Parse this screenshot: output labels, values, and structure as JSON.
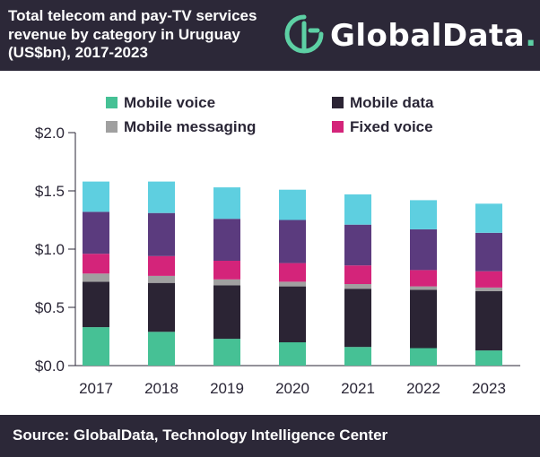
{
  "header": {
    "title_lines": [
      "Total telecom and pay-TV services",
      "revenue by category in Uruguay",
      "(US$bn), 2017-2023"
    ],
    "logo_text": "GlobalData",
    "logo_dot": "."
  },
  "footer": {
    "source": "Source: GlobalData, Technology Intelligence Center"
  },
  "colors": {
    "background_dark": "#2c2838",
    "logo_accent": "#5dd0a4"
  },
  "chart_data": {
    "type": "bar",
    "stacked": true,
    "title": "Total telecom and pay-TV services revenue by category in Uruguay (US$bn), 2017-2023",
    "categories": [
      "2017",
      "2018",
      "2019",
      "2020",
      "2021",
      "2022",
      "2023"
    ],
    "ylim": [
      0,
      2.0
    ],
    "yticks": [
      "$0.0",
      "$0.5",
      "$1.0",
      "$1.5",
      "$2.0"
    ],
    "ytick_values": [
      0,
      0.5,
      1.0,
      1.5,
      2.0
    ],
    "legend_position": "top",
    "series": [
      {
        "name": "Mobile voice",
        "color": "#46c195",
        "values": [
          0.33,
          0.29,
          0.23,
          0.2,
          0.16,
          0.15,
          0.13
        ]
      },
      {
        "name": "Mobile data",
        "color": "#2b2434",
        "values": [
          0.39,
          0.42,
          0.46,
          0.48,
          0.5,
          0.5,
          0.51
        ]
      },
      {
        "name": "Mobile messaging",
        "color": "#a0a0a0",
        "values": [
          0.07,
          0.06,
          0.05,
          0.04,
          0.04,
          0.03,
          0.03
        ]
      },
      {
        "name": "Fixed voice",
        "color": "#d4247a",
        "values": [
          0.17,
          0.17,
          0.16,
          0.16,
          0.16,
          0.14,
          0.14
        ]
      },
      {
        "name": "",
        "color": "#5b3b7e",
        "values": [
          0.36,
          0.37,
          0.36,
          0.37,
          0.35,
          0.35,
          0.33
        ]
      },
      {
        "name": "",
        "color": "#5ecfe0",
        "values": [
          0.26,
          0.27,
          0.27,
          0.26,
          0.26,
          0.25,
          0.25
        ]
      }
    ]
  }
}
